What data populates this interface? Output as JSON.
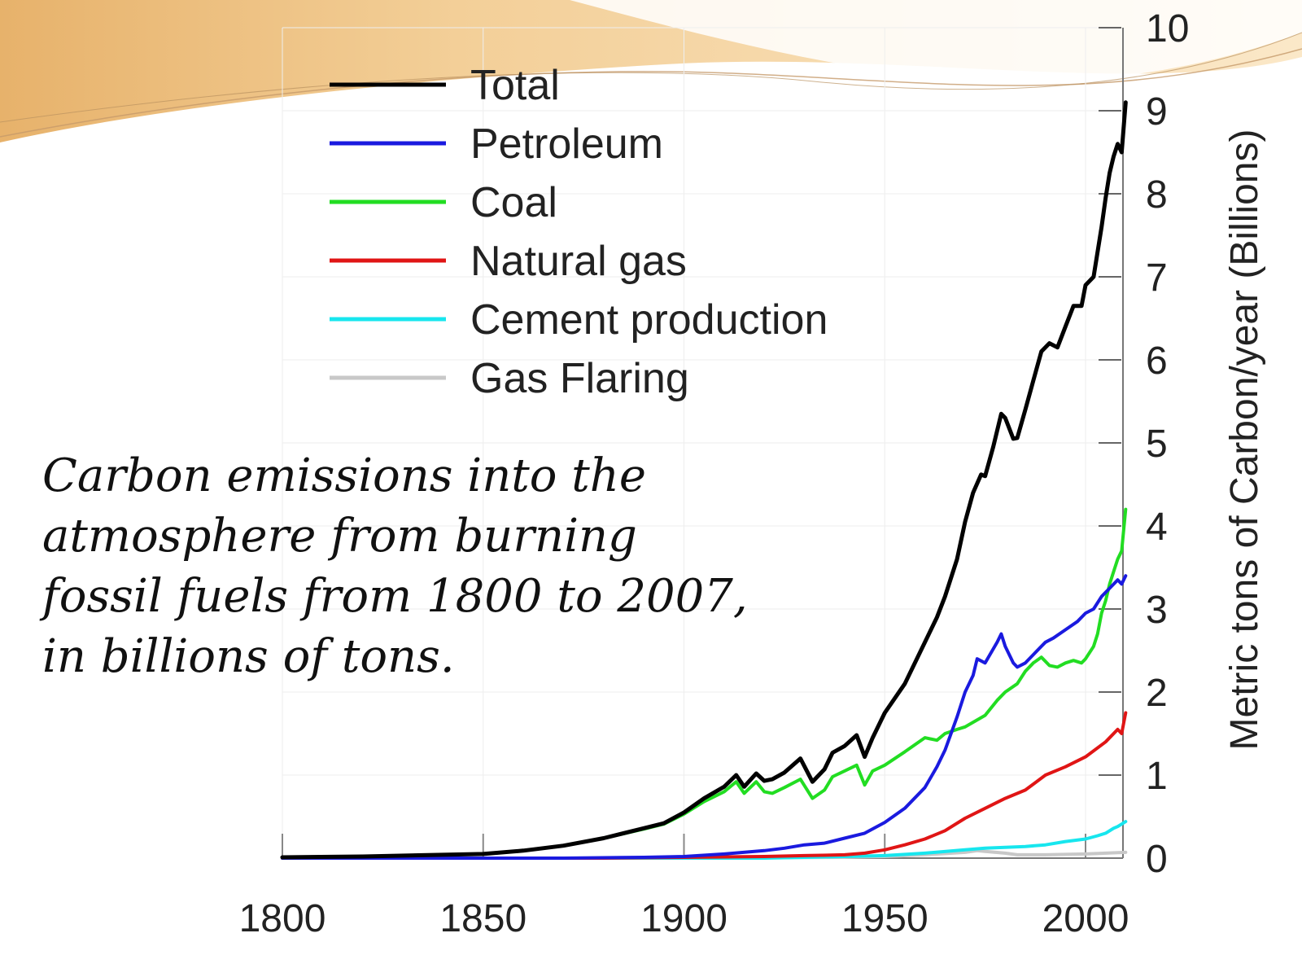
{
  "caption": {
    "line1": "Carbon emissions into the",
    "line2": "atmosphere from burning",
    "line3": "fossil fuels from 1800 to 2007,",
    "line4": "in billions of tons."
  },
  "theme": {
    "banner_light": "#fbe8c8",
    "banner_mid": "#f3cf98",
    "banner_dark": "#e7b26b"
  },
  "chart_data": {
    "type": "line",
    "title": "",
    "xlabel": "",
    "ylabel": "Metric tons of Carbon/year (Billions)",
    "xlim": [
      1800,
      2010
    ],
    "ylim": [
      0,
      10
    ],
    "x_ticks": [
      "1800",
      "1850",
      "1900",
      "1950",
      "2000"
    ],
    "y_ticks": [
      "0",
      "1",
      "2",
      "3",
      "4",
      "5",
      "6",
      "7",
      "8",
      "9",
      "10"
    ],
    "grid": true,
    "legend_position": "top-left",
    "series": [
      {
        "name": "Total",
        "color": "#000000",
        "points": [
          [
            1800,
            0.01
          ],
          [
            1820,
            0.02
          ],
          [
            1840,
            0.04
          ],
          [
            1850,
            0.05
          ],
          [
            1860,
            0.09
          ],
          [
            1870,
            0.15
          ],
          [
            1880,
            0.24
          ],
          [
            1890,
            0.36
          ],
          [
            1895,
            0.42
          ],
          [
            1900,
            0.55
          ],
          [
            1905,
            0.72
          ],
          [
            1910,
            0.86
          ],
          [
            1913,
            1.0
          ],
          [
            1915,
            0.86
          ],
          [
            1918,
            1.02
          ],
          [
            1920,
            0.93
          ],
          [
            1922,
            0.95
          ],
          [
            1925,
            1.03
          ],
          [
            1929,
            1.2
          ],
          [
            1932,
            0.92
          ],
          [
            1935,
            1.07
          ],
          [
            1937,
            1.27
          ],
          [
            1940,
            1.35
          ],
          [
            1943,
            1.48
          ],
          [
            1945,
            1.22
          ],
          [
            1947,
            1.45
          ],
          [
            1950,
            1.75
          ],
          [
            1955,
            2.1
          ],
          [
            1960,
            2.6
          ],
          [
            1963,
            2.9
          ],
          [
            1965,
            3.15
          ],
          [
            1968,
            3.6
          ],
          [
            1970,
            4.05
          ],
          [
            1972,
            4.4
          ],
          [
            1974,
            4.62
          ],
          [
            1975,
            4.6
          ],
          [
            1977,
            4.95
          ],
          [
            1979,
            5.35
          ],
          [
            1980,
            5.3
          ],
          [
            1982,
            5.05
          ],
          [
            1983,
            5.06
          ],
          [
            1985,
            5.4
          ],
          [
            1987,
            5.75
          ],
          [
            1989,
            6.1
          ],
          [
            1991,
            6.2
          ],
          [
            1993,
            6.15
          ],
          [
            1995,
            6.4
          ],
          [
            1997,
            6.65
          ],
          [
            1999,
            6.65
          ],
          [
            2000,
            6.9
          ],
          [
            2002,
            7.0
          ],
          [
            2004,
            7.6
          ],
          [
            2005,
            7.95
          ],
          [
            2006,
            8.25
          ],
          [
            2007,
            8.45
          ],
          [
            2008,
            8.6
          ],
          [
            2009,
            8.5
          ],
          [
            2010,
            9.1
          ]
        ]
      },
      {
        "name": "Petroleum",
        "color": "#1a1adf",
        "points": [
          [
            1800,
            0
          ],
          [
            1870,
            0.0
          ],
          [
            1890,
            0.01
          ],
          [
            1900,
            0.02
          ],
          [
            1910,
            0.05
          ],
          [
            1920,
            0.09
          ],
          [
            1925,
            0.12
          ],
          [
            1930,
            0.16
          ],
          [
            1935,
            0.18
          ],
          [
            1940,
            0.24
          ],
          [
            1945,
            0.3
          ],
          [
            1950,
            0.43
          ],
          [
            1955,
            0.6
          ],
          [
            1960,
            0.85
          ],
          [
            1963,
            1.1
          ],
          [
            1965,
            1.3
          ],
          [
            1968,
            1.7
          ],
          [
            1970,
            2.0
          ],
          [
            1972,
            2.2
          ],
          [
            1973,
            2.4
          ],
          [
            1975,
            2.35
          ],
          [
            1978,
            2.6
          ],
          [
            1979,
            2.7
          ],
          [
            1980,
            2.55
          ],
          [
            1982,
            2.35
          ],
          [
            1983,
            2.3
          ],
          [
            1985,
            2.35
          ],
          [
            1987,
            2.45
          ],
          [
            1989,
            2.55
          ],
          [
            1990,
            2.6
          ],
          [
            1992,
            2.65
          ],
          [
            1995,
            2.75
          ],
          [
            1998,
            2.85
          ],
          [
            2000,
            2.95
          ],
          [
            2002,
            3.0
          ],
          [
            2004,
            3.15
          ],
          [
            2006,
            3.25
          ],
          [
            2008,
            3.35
          ],
          [
            2009,
            3.3
          ],
          [
            2010,
            3.4
          ]
        ]
      },
      {
        "name": "Coal",
        "color": "#22dd22",
        "points": [
          [
            1800,
            0.01
          ],
          [
            1820,
            0.02
          ],
          [
            1840,
            0.04
          ],
          [
            1850,
            0.05
          ],
          [
            1860,
            0.09
          ],
          [
            1870,
            0.15
          ],
          [
            1880,
            0.24
          ],
          [
            1890,
            0.35
          ],
          [
            1895,
            0.41
          ],
          [
            1900,
            0.53
          ],
          [
            1905,
            0.68
          ],
          [
            1910,
            0.8
          ],
          [
            1913,
            0.92
          ],
          [
            1915,
            0.78
          ],
          [
            1918,
            0.92
          ],
          [
            1920,
            0.8
          ],
          [
            1922,
            0.78
          ],
          [
            1925,
            0.85
          ],
          [
            1929,
            0.95
          ],
          [
            1932,
            0.72
          ],
          [
            1935,
            0.82
          ],
          [
            1937,
            0.98
          ],
          [
            1940,
            1.05
          ],
          [
            1943,
            1.12
          ],
          [
            1945,
            0.88
          ],
          [
            1947,
            1.05
          ],
          [
            1950,
            1.12
          ],
          [
            1955,
            1.28
          ],
          [
            1960,
            1.45
          ],
          [
            1963,
            1.42
          ],
          [
            1965,
            1.5
          ],
          [
            1968,
            1.55
          ],
          [
            1970,
            1.58
          ],
          [
            1975,
            1.72
          ],
          [
            1978,
            1.9
          ],
          [
            1980,
            2.0
          ],
          [
            1983,
            2.1
          ],
          [
            1985,
            2.25
          ],
          [
            1987,
            2.35
          ],
          [
            1989,
            2.42
          ],
          [
            1991,
            2.32
          ],
          [
            1993,
            2.3
          ],
          [
            1995,
            2.35
          ],
          [
            1997,
            2.38
          ],
          [
            1999,
            2.35
          ],
          [
            2000,
            2.4
          ],
          [
            2002,
            2.55
          ],
          [
            2003,
            2.7
          ],
          [
            2004,
            2.95
          ],
          [
            2005,
            3.1
          ],
          [
            2006,
            3.3
          ],
          [
            2007,
            3.45
          ],
          [
            2008,
            3.6
          ],
          [
            2009,
            3.7
          ],
          [
            2010,
            4.2
          ]
        ]
      },
      {
        "name": "Natural gas",
        "color": "#e01515",
        "points": [
          [
            1800,
            0
          ],
          [
            1880,
            0.0
          ],
          [
            1900,
            0.01
          ],
          [
            1920,
            0.02
          ],
          [
            1930,
            0.03
          ],
          [
            1940,
            0.04
          ],
          [
            1945,
            0.06
          ],
          [
            1950,
            0.1
          ],
          [
            1955,
            0.16
          ],
          [
            1960,
            0.23
          ],
          [
            1965,
            0.33
          ],
          [
            1970,
            0.48
          ],
          [
            1975,
            0.6
          ],
          [
            1980,
            0.72
          ],
          [
            1985,
            0.82
          ],
          [
            1990,
            1.0
          ],
          [
            1995,
            1.1
          ],
          [
            2000,
            1.22
          ],
          [
            2005,
            1.4
          ],
          [
            2008,
            1.55
          ],
          [
            2009,
            1.5
          ],
          [
            2010,
            1.75
          ]
        ]
      },
      {
        "name": "Cement production",
        "color": "#17e6ee",
        "points": [
          [
            1800,
            0
          ],
          [
            1920,
            0.0
          ],
          [
            1930,
            0.01
          ],
          [
            1940,
            0.02
          ],
          [
            1950,
            0.03
          ],
          [
            1960,
            0.06
          ],
          [
            1970,
            0.1
          ],
          [
            1975,
            0.12
          ],
          [
            1980,
            0.13
          ],
          [
            1985,
            0.14
          ],
          [
            1990,
            0.16
          ],
          [
            1995,
            0.2
          ],
          [
            2000,
            0.23
          ],
          [
            2003,
            0.27
          ],
          [
            2005,
            0.3
          ],
          [
            2007,
            0.36
          ],
          [
            2008,
            0.38
          ],
          [
            2009,
            0.41
          ],
          [
            2010,
            0.44
          ]
        ]
      },
      {
        "name": "Gas Flaring",
        "color": "#c8c8c8",
        "points": [
          [
            1800,
            0
          ],
          [
            1900,
            0.0
          ],
          [
            1940,
            0.01
          ],
          [
            1950,
            0.02
          ],
          [
            1960,
            0.04
          ],
          [
            1970,
            0.07
          ],
          [
            1973,
            0.09
          ],
          [
            1975,
            0.08
          ],
          [
            1980,
            0.06
          ],
          [
            1983,
            0.04
          ],
          [
            1990,
            0.04
          ],
          [
            2000,
            0.05
          ],
          [
            2005,
            0.06
          ],
          [
            2010,
            0.07
          ]
        ]
      }
    ]
  }
}
